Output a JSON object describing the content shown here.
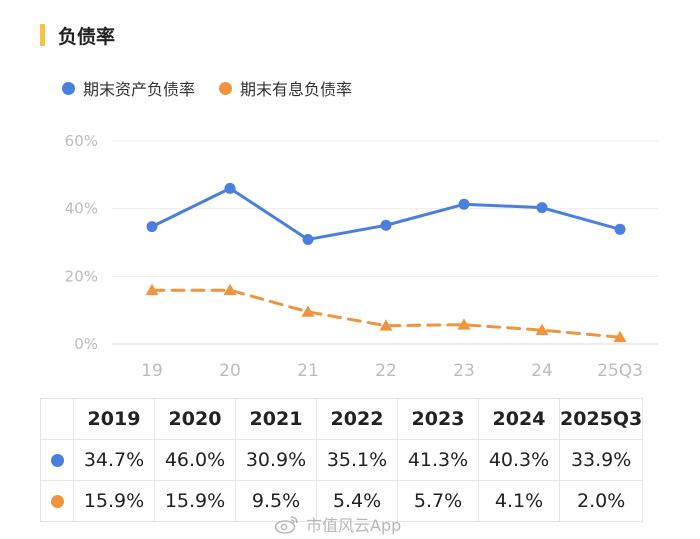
{
  "header": {
    "title": "负债率"
  },
  "chart_data": {
    "type": "line",
    "categories": [
      "19",
      "20",
      "21",
      "22",
      "23",
      "24",
      "25Q3"
    ],
    "yticks": [
      "0%",
      "20%",
      "40%",
      "60%"
    ],
    "ylim": [
      0,
      60
    ],
    "grid": true,
    "legend_position": "top-left",
    "series": [
      {
        "name": "期末资产负债率",
        "color": "#4a7fe0",
        "marker": "circle",
        "style": "solid",
        "values": [
          34.7,
          46.0,
          30.9,
          35.1,
          41.3,
          40.3,
          33.9
        ]
      },
      {
        "name": "期末有息负债率",
        "color": "#f0943f",
        "marker": "triangle",
        "style": "dashed",
        "values": [
          15.9,
          15.9,
          9.5,
          5.4,
          5.7,
          4.1,
          2.0
        ]
      }
    ]
  },
  "table": {
    "headers": [
      "2019",
      "2020",
      "2021",
      "2022",
      "2023",
      "2024",
      "2025Q3"
    ],
    "rows": [
      {
        "color": "#4a7fe0",
        "cells": [
          "34.7%",
          "46.0%",
          "30.9%",
          "35.1%",
          "41.3%",
          "40.3%",
          "33.9%"
        ]
      },
      {
        "color": "#f0943f",
        "cells": [
          "15.9%",
          "15.9%",
          "9.5%",
          "5.4%",
          "5.7%",
          "4.1%",
          "2.0%"
        ]
      }
    ]
  },
  "watermark": {
    "text": "市值风云App",
    "icon": "weibo-icon"
  }
}
